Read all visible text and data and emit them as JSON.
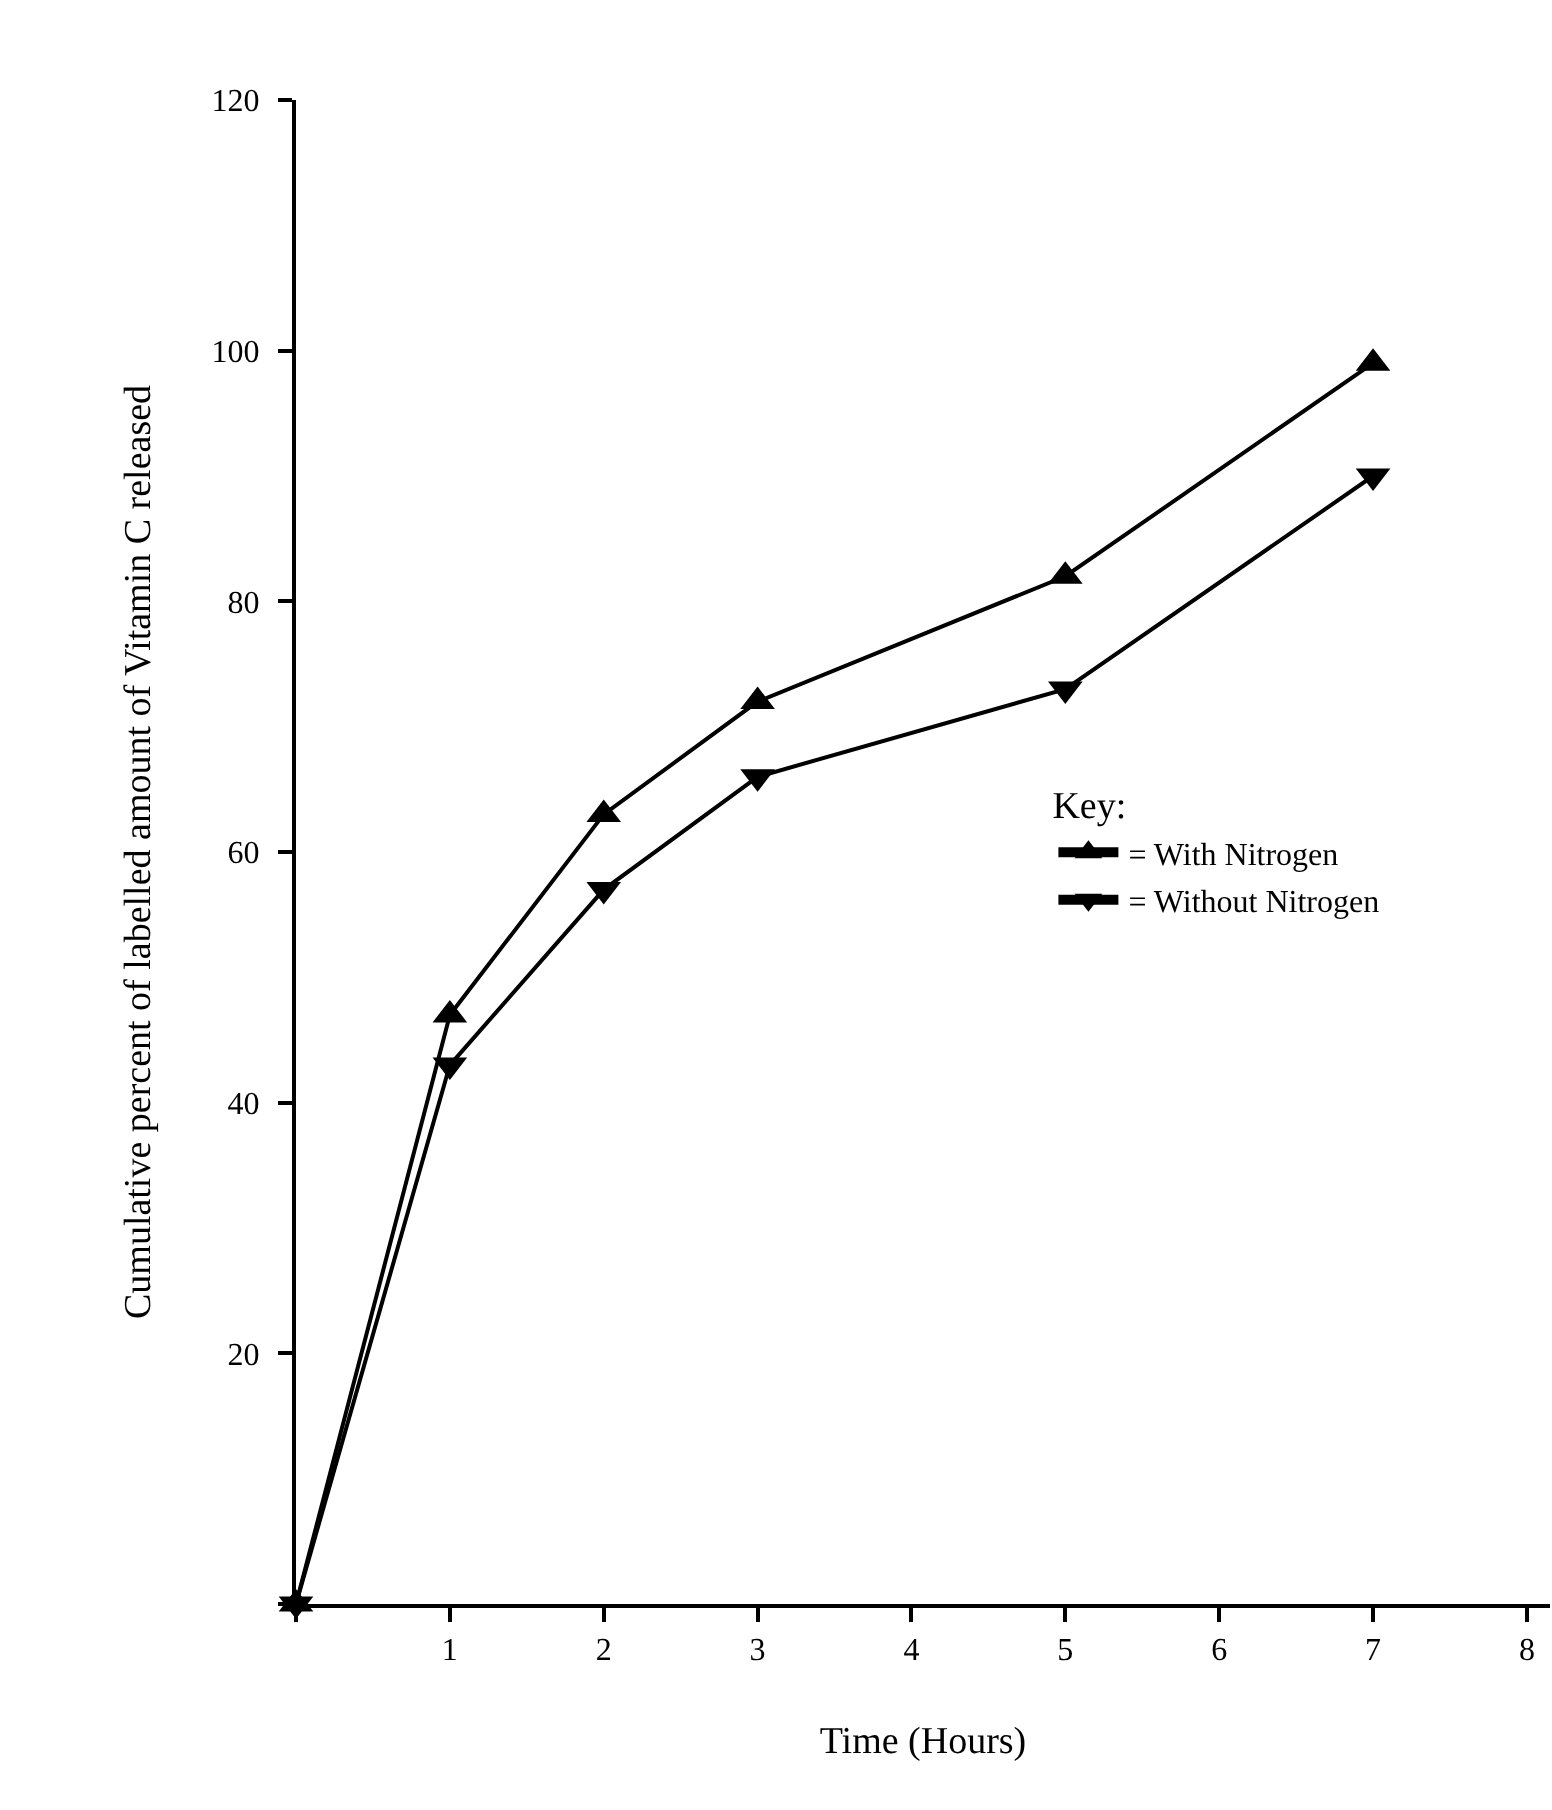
{
  "chart_data": {
    "type": "line",
    "xlabel": "Time (Hours)",
    "ylabel": "Cumulative percent of labelled amount of Vitamin C released",
    "legend_title": "Key:",
    "x": [
      0,
      1,
      2,
      3,
      5,
      7
    ],
    "series": [
      {
        "name": "= With Nitrogen",
        "color": "#000000",
        "marker": "triangle",
        "values": [
          0,
          47,
          63,
          72,
          82,
          99
        ]
      },
      {
        "name": "= Without Nitrogen",
        "color": "#000000",
        "marker": "triangle-down",
        "values": [
          0,
          43,
          57,
          66,
          73,
          90
        ]
      }
    ],
    "xlim": [
      0,
      8.15
    ],
    "xticks": [
      {
        "value": 0,
        "label": null
      },
      1,
      2,
      3,
      4,
      5,
      6,
      7,
      8
    ],
    "ylim": [
      0,
      120
    ],
    "yticks": [
      {
        "value": 0,
        "label": null
      },
      20,
      40,
      60,
      80,
      100,
      120
    ],
    "grid": false,
    "legend": "right",
    "line_style": "solid"
  }
}
